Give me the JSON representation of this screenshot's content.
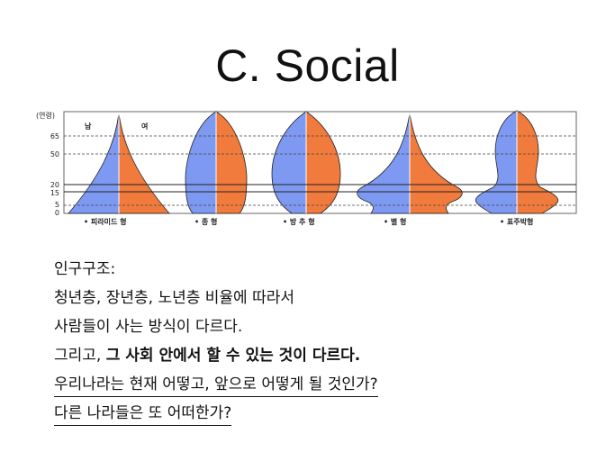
{
  "slide": {
    "title": "C. Social"
  },
  "chart": {
    "axis_label": "(연령)",
    "male_label": "남",
    "female_label": "여",
    "age_ticks": [
      "65",
      "50",
      "20",
      "15",
      "5",
      "0"
    ],
    "types": [
      {
        "label": "• 피라미드 형"
      },
      {
        "label": "• 종     형"
      },
      {
        "label": "• 방  추  형"
      },
      {
        "label": "• 별      형"
      },
      {
        "label": "• 표주박형"
      }
    ],
    "colors": {
      "male": "#7d99f2",
      "female": "#f07b3c",
      "grid": "#555555"
    }
  },
  "text": {
    "line1": "인구구조:",
    "line2": "청년층, 장년층, 노년층 비율에 따라서",
    "line3": "사람들이 사는 방식이 다르다.",
    "line4_prefix": "그리고, ",
    "line4_bold": "그 사회 안에서 할 수 있는 것이 다르다.",
    "line5": "우리나라는 현재 어떻고, 앞으로 어떻게 될 것인가?",
    "line6": "다른 나라들은 또 어떠한가?"
  }
}
